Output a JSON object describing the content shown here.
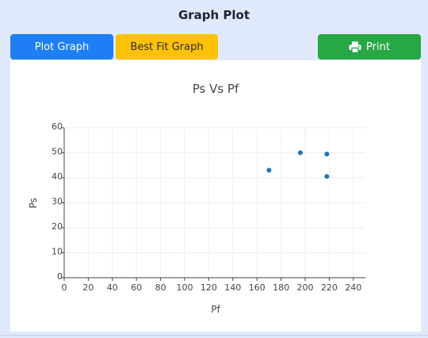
{
  "header": {
    "title": "Graph Plot"
  },
  "toolbar": {
    "plot_label": "Plot Graph",
    "best_fit_label": "Best Fit Graph",
    "print_label": "Print",
    "print_icon": "printer-icon"
  },
  "colors": {
    "plot_button": "#1e7ff5",
    "best_fit_button": "#ffc107",
    "print_button": "#28a745",
    "marker": "#1f77b4"
  },
  "chart_data": {
    "type": "scatter",
    "title": "Ps Vs Pf",
    "xlabel": "Pf",
    "ylabel": "Ps",
    "xlim": [
      0,
      250
    ],
    "ylim": [
      0,
      60
    ],
    "x_ticks": [
      0,
      20,
      40,
      60,
      80,
      100,
      120,
      140,
      160,
      180,
      200,
      220,
      240
    ],
    "y_ticks": [
      0,
      10,
      20,
      30,
      40,
      50,
      60
    ],
    "grid": true,
    "series": [
      {
        "points": [
          {
            "x": 170,
            "y": 43
          },
          {
            "x": 196,
            "y": 50
          },
          {
            "x": 218,
            "y": 49.5
          },
          {
            "x": 218,
            "y": 40.5
          }
        ]
      }
    ]
  }
}
